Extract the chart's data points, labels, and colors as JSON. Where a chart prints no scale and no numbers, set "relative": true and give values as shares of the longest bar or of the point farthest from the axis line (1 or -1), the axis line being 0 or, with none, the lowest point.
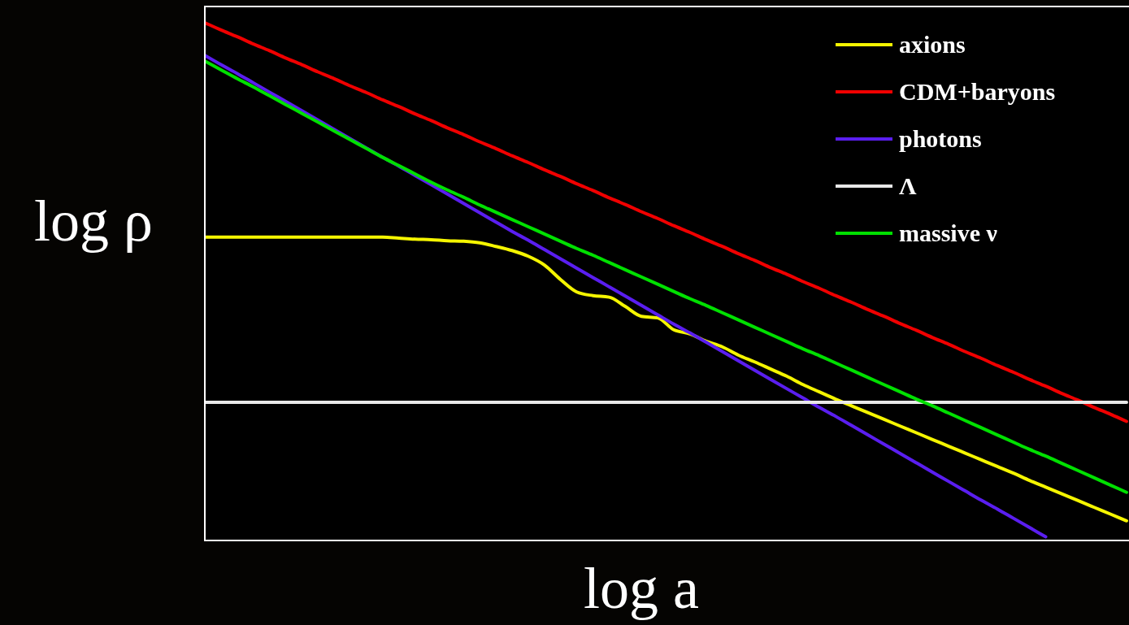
{
  "chart_data": {
    "type": "line",
    "relative": true,
    "xlabel": "log a",
    "ylabel": "log ρ",
    "legend": "top right",
    "categories": [
      null,
      null,
      null,
      null,
      null,
      null,
      null,
      null,
      null,
      null,
      null,
      null,
      null,
      null,
      null,
      null,
      null,
      null,
      null,
      null,
      null,
      null,
      null,
      null,
      null,
      null,
      null,
      null,
      null,
      null,
      null,
      null,
      null,
      null,
      null,
      null,
      null,
      null,
      null,
      null,
      null,
      null,
      null,
      null,
      null,
      null,
      null,
      null,
      null,
      null,
      null,
      null,
      null,
      null,
      null,
      null,
      null,
      null
    ],
    "series": [
      {
        "name": "axions",
        "color": "#f5f500",
        "values": [
          0.586,
          0.586,
          0.586,
          0.586,
          0.586,
          0.586,
          0.586,
          0.586,
          0.586,
          0.586,
          0.586,
          0.586,
          0.584,
          0.582,
          0.581,
          0.579,
          0.578,
          0.575,
          0.568,
          0.56,
          0.549,
          0.532,
          0.504,
          0.48,
          0.473,
          0.47,
          0.452,
          0.433,
          0.43,
          0.407,
          0.399,
          0.385,
          0.374,
          0.358,
          0.345,
          0.331,
          0.317,
          0.301,
          0.287,
          0.273,
          0.26,
          0.247,
          0.234,
          0.221,
          0.208,
          0.195,
          0.182,
          0.169,
          0.156,
          0.143,
          0.13,
          0.116,
          0.103,
          0.09,
          0.077,
          0.064,
          0.051,
          0.038
        ]
      },
      {
        "name": "CDM+baryons",
        "color": "#f00000",
        "values": [
          1.0,
          0.986,
          0.973,
          0.959,
          0.946,
          0.932,
          0.919,
          0.905,
          0.892,
          0.878,
          0.865,
          0.851,
          0.838,
          0.824,
          0.811,
          0.797,
          0.784,
          0.77,
          0.757,
          0.743,
          0.73,
          0.716,
          0.703,
          0.689,
          0.676,
          0.662,
          0.649,
          0.635,
          0.622,
          0.608,
          0.595,
          0.581,
          0.568,
          0.554,
          0.541,
          0.527,
          0.514,
          0.5,
          0.487,
          0.473,
          0.46,
          0.446,
          0.433,
          0.419,
          0.406,
          0.392,
          0.379,
          0.365,
          0.352,
          0.338,
          0.325,
          0.311,
          0.298,
          0.284,
          0.271,
          0.257,
          0.244,
          0.23
        ]
      },
      {
        "name": "photons",
        "color": "#5a1ef0",
        "values": [
          0.937,
          0.919,
          0.902,
          0.884,
          0.866,
          0.848,
          0.83,
          0.812,
          0.794,
          0.776,
          0.758,
          0.74,
          0.723,
          0.705,
          0.687,
          0.669,
          0.651,
          0.633,
          0.615,
          0.597,
          0.58,
          0.562,
          0.544,
          0.526,
          0.508,
          0.49,
          0.472,
          0.454,
          0.436,
          0.418,
          0.401,
          0.383,
          0.365,
          0.347,
          0.329,
          0.311,
          0.293,
          0.275,
          0.257,
          0.24,
          0.222,
          0.204,
          0.186,
          0.168,
          0.15,
          0.132,
          0.114,
          0.096,
          0.078,
          0.061,
          0.043,
          0.025,
          0.007,
          null,
          null,
          null,
          null,
          null
        ]
      },
      {
        "name": "Λ",
        "color": "#e8e8e8",
        "values": [
          0.267,
          0.267,
          0.267,
          0.267,
          0.267,
          0.267,
          0.267,
          0.267,
          0.267,
          0.267,
          0.267,
          0.267,
          0.267,
          0.267,
          0.267,
          0.267,
          0.267,
          0.267,
          0.267,
          0.267,
          0.267,
          0.267,
          0.267,
          0.267,
          0.267,
          0.267,
          0.267,
          0.267,
          0.267,
          0.267,
          0.267,
          0.267,
          0.267,
          0.267,
          0.267,
          0.267,
          0.267,
          0.267,
          0.267,
          0.267,
          0.267,
          0.267,
          0.267,
          0.267,
          0.267,
          0.267,
          0.267,
          0.267,
          0.267,
          0.267,
          0.267,
          0.267,
          0.267,
          0.267,
          0.267,
          0.267,
          0.267,
          0.267
        ]
      },
      {
        "name": "massive ν",
        "color": "#00e000",
        "values": [
          0.926,
          0.909,
          0.892,
          0.876,
          0.859,
          0.842,
          0.825,
          0.808,
          0.791,
          0.774,
          0.757,
          0.74,
          0.724,
          0.708,
          0.692,
          0.677,
          0.663,
          0.648,
          0.634,
          0.62,
          0.606,
          0.592,
          0.578,
          0.564,
          0.551,
          0.537,
          0.523,
          0.509,
          0.495,
          0.481,
          0.467,
          0.454,
          0.44,
          0.426,
          0.412,
          0.398,
          0.384,
          0.37,
          0.357,
          0.343,
          0.329,
          0.315,
          0.301,
          0.287,
          0.273,
          0.26,
          0.246,
          0.232,
          0.218,
          0.204,
          0.19,
          0.176,
          0.163,
          0.149,
          0.135,
          0.121,
          0.107,
          0.093
        ]
      }
    ]
  }
}
